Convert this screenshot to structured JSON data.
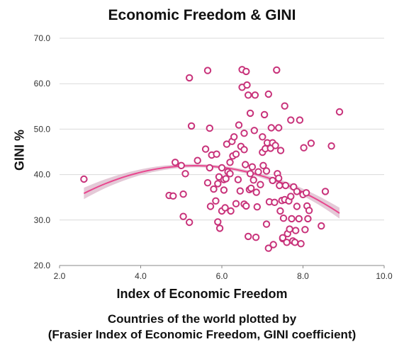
{
  "chart_data": {
    "type": "scatter",
    "title": "Economic Freedom & GINI",
    "xlabel": "Index of Economic Freedom",
    "ylabel": "GINI %",
    "xlim": [
      2.0,
      10.0
    ],
    "ylim": [
      20.0,
      70.0
    ],
    "xticks": [
      "2.0",
      "4.0",
      "6.0",
      "8.0",
      "10.0"
    ],
    "yticks": [
      "20.0",
      "30.0",
      "40.0",
      "50.0",
      "60.0",
      "70.0"
    ],
    "grid": "horizontal",
    "marker_color": "#C8327A",
    "trend_color": "#E9468E",
    "band_color": "#D8B2C6",
    "caption": [
      "Countries of the world plotted by",
      "(Frasier Index of Economic Freedom, GINI coefficient)"
    ],
    "points": [
      [
        2.6,
        39.0
      ],
      [
        4.7,
        35.4
      ],
      [
        4.8,
        35.3
      ],
      [
        4.85,
        42.7
      ],
      [
        5.0,
        42.0
      ],
      [
        5.05,
        35.7
      ],
      [
        5.05,
        30.8
      ],
      [
        5.1,
        40.2
      ],
      [
        5.2,
        29.5
      ],
      [
        5.2,
        61.3
      ],
      [
        5.25,
        50.7
      ],
      [
        5.4,
        43.1
      ],
      [
        5.6,
        45.6
      ],
      [
        5.65,
        62.9
      ],
      [
        5.65,
        38.2
      ],
      [
        5.7,
        41.5
      ],
      [
        5.7,
        50.2
      ],
      [
        5.72,
        33.0
      ],
      [
        5.75,
        44.3
      ],
      [
        5.8,
        36.8
      ],
      [
        5.85,
        34.2
      ],
      [
        5.87,
        44.5
      ],
      [
        5.9,
        38.0
      ],
      [
        5.9,
        29.6
      ],
      [
        5.93,
        39.5
      ],
      [
        5.95,
        28.2
      ],
      [
        6.0,
        41.5
      ],
      [
        6.0,
        32.0
      ],
      [
        6.05,
        38.9
      ],
      [
        6.05,
        36.6
      ],
      [
        6.08,
        32.7
      ],
      [
        6.1,
        39.1
      ],
      [
        6.12,
        46.7
      ],
      [
        6.15,
        40.6
      ],
      [
        6.2,
        40.2
      ],
      [
        6.2,
        42.7
      ],
      [
        6.22,
        32.0
      ],
      [
        6.25,
        47.3
      ],
      [
        6.27,
        44.1
      ],
      [
        6.3,
        48.3
      ],
      [
        6.35,
        33.6
      ],
      [
        6.35,
        44.5
      ],
      [
        6.4,
        38.9
      ],
      [
        6.42,
        50.9
      ],
      [
        6.45,
        36.4
      ],
      [
        6.47,
        46.2
      ],
      [
        6.5,
        63.1
      ],
      [
        6.5,
        59.2
      ],
      [
        6.55,
        49.1
      ],
      [
        6.55,
        45.5
      ],
      [
        6.55,
        33.5
      ],
      [
        6.58,
        42.2
      ],
      [
        6.6,
        62.7
      ],
      [
        6.6,
        33.1
      ],
      [
        6.62,
        59.7
      ],
      [
        6.65,
        57.5
      ],
      [
        6.65,
        26.4
      ],
      [
        6.68,
        36.7
      ],
      [
        6.7,
        53.5
      ],
      [
        6.7,
        40.2
      ],
      [
        6.72,
        37.0
      ],
      [
        6.75,
        41.7
      ],
      [
        6.78,
        38.8
      ],
      [
        6.8,
        49.7
      ],
      [
        6.82,
        57.5
      ],
      [
        6.84,
        26.2
      ],
      [
        6.85,
        36.1
      ],
      [
        6.87,
        32.9
      ],
      [
        6.9,
        40.6
      ],
      [
        6.95,
        37.8
      ],
      [
        7.0,
        48.3
      ],
      [
        7.0,
        44.9
      ],
      [
        7.02,
        42.0
      ],
      [
        7.05,
        53.2
      ],
      [
        7.07,
        45.7
      ],
      [
        7.1,
        40.8
      ],
      [
        7.1,
        29.1
      ],
      [
        7.12,
        47.0
      ],
      [
        7.15,
        57.7
      ],
      [
        7.15,
        23.8
      ],
      [
        7.17,
        34.0
      ],
      [
        7.2,
        45.8
      ],
      [
        7.22,
        50.3
      ],
      [
        7.25,
        47.0
      ],
      [
        7.25,
        38.7
      ],
      [
        7.27,
        24.6
      ],
      [
        7.3,
        33.9
      ],
      [
        7.32,
        46.4
      ],
      [
        7.35,
        63.0
      ],
      [
        7.37,
        40.2
      ],
      [
        7.4,
        50.3
      ],
      [
        7.4,
        39.2
      ],
      [
        7.42,
        37.6
      ],
      [
        7.44,
        32.0
      ],
      [
        7.45,
        45.3
      ],
      [
        7.48,
        34.3
      ],
      [
        7.5,
        25.9
      ],
      [
        7.5,
        26.1
      ],
      [
        7.52,
        30.4
      ],
      [
        7.55,
        55.1
      ],
      [
        7.55,
        34.5
      ],
      [
        7.57,
        37.6
      ],
      [
        7.6,
        25.1
      ],
      [
        7.62,
        27.0
      ],
      [
        7.65,
        34.2
      ],
      [
        7.67,
        28.0
      ],
      [
        7.7,
        52.0
      ],
      [
        7.7,
        35.2
      ],
      [
        7.72,
        30.3
      ],
      [
        7.75,
        25.4
      ],
      [
        7.77,
        37.3
      ],
      [
        7.8,
        25.1
      ],
      [
        7.82,
        27.7
      ],
      [
        7.85,
        36.3
      ],
      [
        7.85,
        33.0
      ],
      [
        7.9,
        30.3
      ],
      [
        7.92,
        52.0
      ],
      [
        7.95,
        24.8
      ],
      [
        8.0,
        35.6
      ],
      [
        8.02,
        45.9
      ],
      [
        8.05,
        27.9
      ],
      [
        8.08,
        36.0
      ],
      [
        8.1,
        33.1
      ],
      [
        8.12,
        30.3
      ],
      [
        8.15,
        32.1
      ],
      [
        8.2,
        46.9
      ],
      [
        8.45,
        28.7
      ],
      [
        8.55,
        36.3
      ],
      [
        8.7,
        46.3
      ],
      [
        8.9,
        53.8
      ]
    ],
    "trendline": {
      "type": "quadratic",
      "x_range": [
        2.6,
        8.9
      ],
      "points": [
        [
          2.6,
          35.9
        ],
        [
          4.0,
          40.4
        ],
        [
          5.4,
          42.0
        ],
        [
          6.5,
          41.0
        ],
        [
          7.5,
          38.0
        ],
        [
          8.5,
          33.5
        ],
        [
          8.9,
          31.7
        ]
      ]
    }
  }
}
